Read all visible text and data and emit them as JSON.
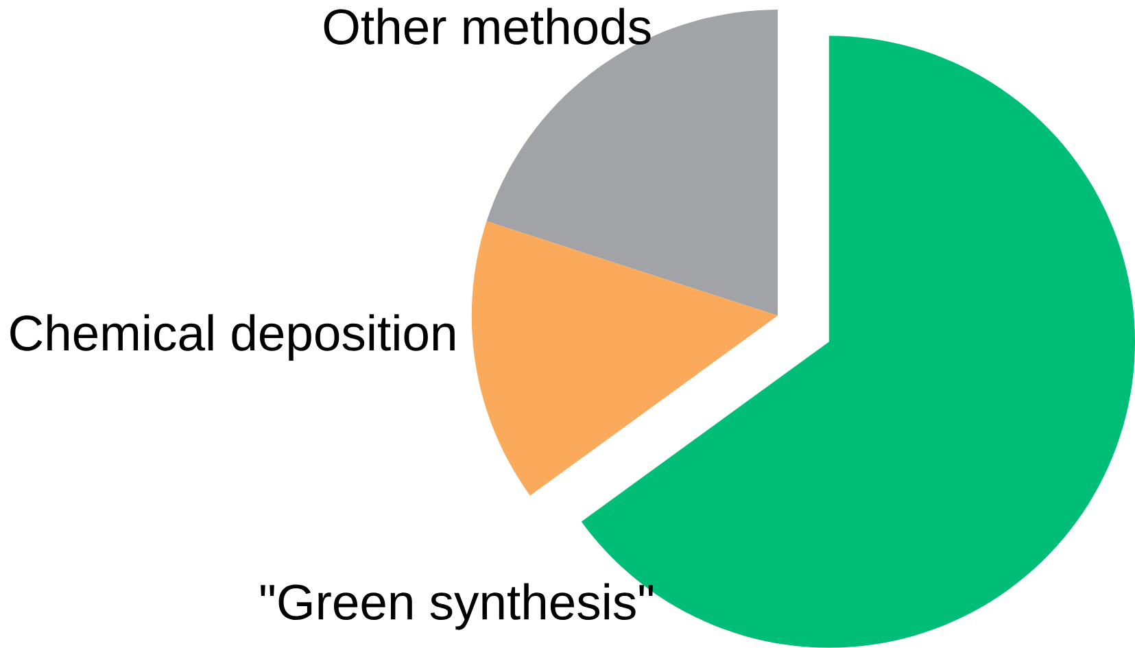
{
  "chart_data": {
    "type": "pie",
    "categories": [
      "\"Green synthesis\"",
      "Chemical deposition",
      "Other methods"
    ],
    "values": [
      65,
      15,
      20
    ],
    "colors": [
      "#00be78",
      "#fbaa5c",
      "#a2a3a7"
    ]
  }
}
